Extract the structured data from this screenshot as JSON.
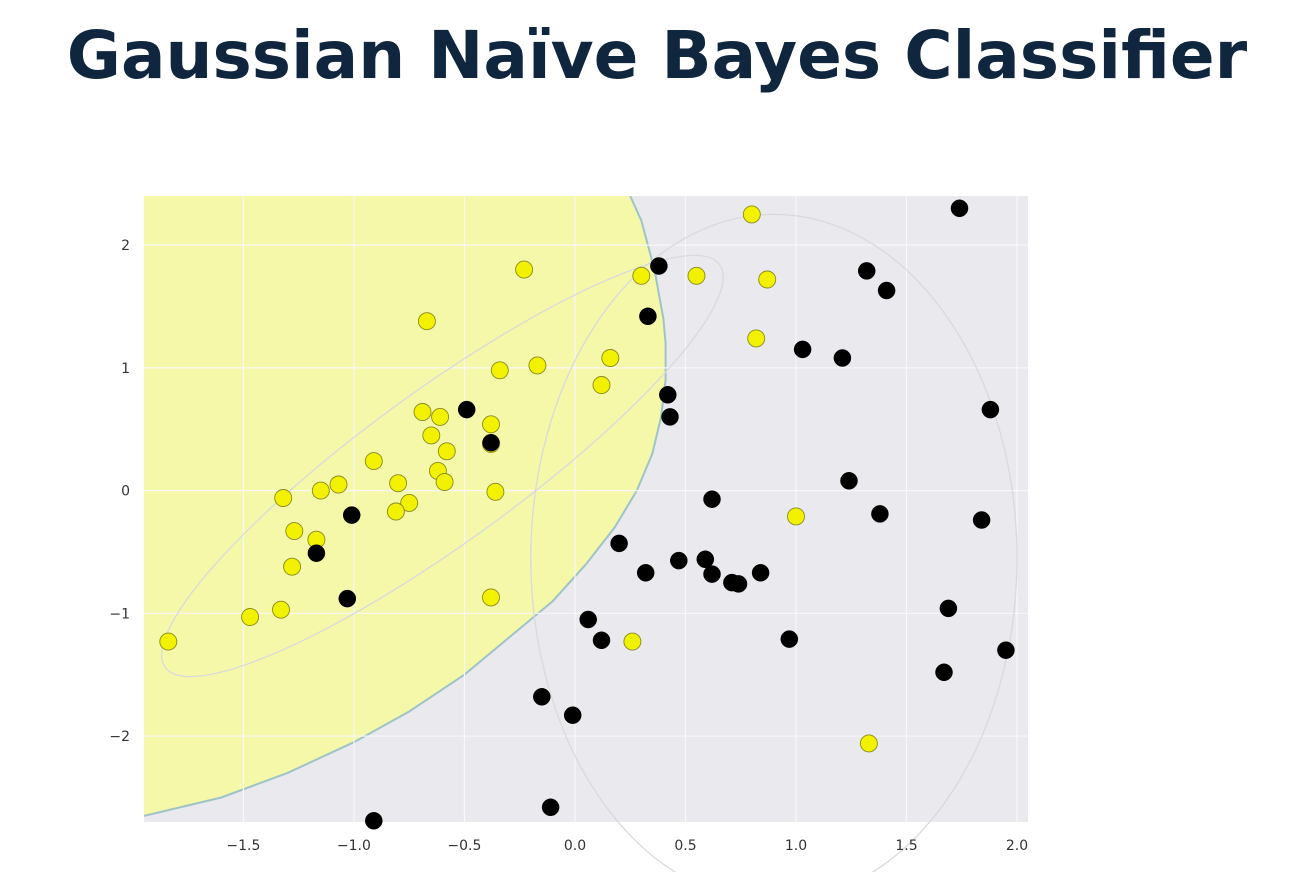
{
  "slide": {
    "title": "Gaussian Naïve Bayes Classifier"
  },
  "colors": {
    "title": "#10263f",
    "region_yellow": "#f4f8a8",
    "region_gray": "#e9e9ee",
    "boundary": "#9fc3c6",
    "class_yellow": "#f2f200",
    "class_black": "#000000",
    "ellipse_stroke": "#d8dadd",
    "grid": "#f8f8fa"
  },
  "chart_data": {
    "type": "scatter",
    "title": "",
    "xlabel": "",
    "ylabel": "",
    "xlim": [
      -1.95,
      2.05
    ],
    "ylim": [
      -2.7,
      2.4
    ],
    "x_ticks": [
      -1.5,
      -1.0,
      -0.5,
      0.0,
      0.5,
      1.0,
      1.5,
      2.0
    ],
    "x_tick_labels": [
      "−1.5",
      "−1.0",
      "−0.5",
      "0.0",
      "0.5",
      "1.0",
      "1.5",
      "2.0"
    ],
    "y_ticks": [
      2,
      1,
      0,
      -1,
      -2
    ],
    "y_tick_labels": [
      "2",
      "1",
      "0",
      "−1",
      "−2"
    ],
    "grid": true,
    "background": "seaborn-style light gray with decision regions",
    "decision_regions": [
      {
        "class": "yellow",
        "area": "upper-left"
      },
      {
        "class": "black",
        "area": "lower-right"
      }
    ],
    "decision_boundary": {
      "x": [
        0.25,
        0.3,
        0.33,
        0.36,
        0.38,
        0.4,
        0.41,
        0.41,
        0.39,
        0.35,
        0.28,
        0.18,
        0.05,
        -0.1,
        -0.3,
        -0.5,
        -0.75,
        -1.0,
        -1.3,
        -1.6,
        -1.95
      ],
      "y": [
        2.4,
        2.2,
        2.0,
        1.8,
        1.6,
        1.4,
        1.2,
        0.9,
        0.6,
        0.3,
        0.0,
        -0.3,
        -0.6,
        -0.9,
        -1.2,
        -1.5,
        -1.8,
        -2.05,
        -2.3,
        -2.5,
        -2.65
      ]
    },
    "ellipses": [
      {
        "class": "yellow",
        "center": [
          -0.6,
          0.2
        ],
        "semi_axes": [
          1.55,
          0.62
        ],
        "angle_deg": 36
      },
      {
        "class": "black",
        "center": [
          0.9,
          -0.55
        ],
        "semi_axes": [
          1.1,
          2.8
        ],
        "angle_deg": 0
      }
    ],
    "series": [
      {
        "name": "",
        "color": "yellow",
        "x": [
          0.8,
          0.3,
          0.55,
          0.87,
          -0.23,
          -0.67,
          0.82,
          0.16,
          -0.17,
          -0.34,
          0.12,
          -0.69,
          -0.61,
          -0.38,
          -0.65,
          -0.38,
          -0.58,
          -0.91,
          -0.62,
          -0.59,
          -1.32,
          -1.15,
          -1.07,
          -0.8,
          -0.75,
          -0.36,
          -0.81,
          -1.27,
          -1.17,
          -1.28,
          -1.33,
          -1.47,
          -0.38,
          -1.84,
          1.0,
          0.26,
          1.33
        ],
        "y": [
          2.25,
          1.75,
          1.75,
          1.72,
          1.8,
          1.38,
          1.24,
          1.08,
          1.02,
          0.98,
          0.86,
          0.64,
          0.6,
          0.54,
          0.45,
          0.38,
          0.32,
          0.24,
          0.16,
          0.07,
          -0.06,
          0.0,
          0.05,
          0.06,
          -0.1,
          -0.01,
          -0.17,
          -0.33,
          -0.4,
          -0.62,
          -0.97,
          -1.03,
          -0.87,
          -1.23,
          -0.21,
          -1.23,
          -2.06
        ]
      },
      {
        "name": "",
        "color": "black",
        "x": [
          1.74,
          0.38,
          1.32,
          1.41,
          0.33,
          1.03,
          1.21,
          0.42,
          0.43,
          1.88,
          -0.49,
          -0.38,
          1.24,
          0.62,
          -1.01,
          1.38,
          1.84,
          0.2,
          -1.17,
          0.47,
          0.59,
          0.32,
          0.62,
          0.84,
          0.71,
          0.74,
          -1.03,
          0.06,
          1.69,
          0.12,
          0.97,
          1.95,
          1.67,
          -0.15,
          -0.01,
          -0.11,
          -0.91
        ],
        "y": [
          2.3,
          1.83,
          1.79,
          1.63,
          1.42,
          1.15,
          1.08,
          0.78,
          0.6,
          0.66,
          0.66,
          0.39,
          0.08,
          -0.07,
          -0.2,
          -0.19,
          -0.24,
          -0.43,
          -0.51,
          -0.57,
          -0.56,
          -0.67,
          -0.68,
          -0.67,
          -0.75,
          -0.76,
          -0.88,
          -1.05,
          -0.96,
          -1.22,
          -1.21,
          -1.3,
          -1.48,
          -1.68,
          -1.83,
          -2.58,
          -2.69
        ]
      }
    ]
  }
}
